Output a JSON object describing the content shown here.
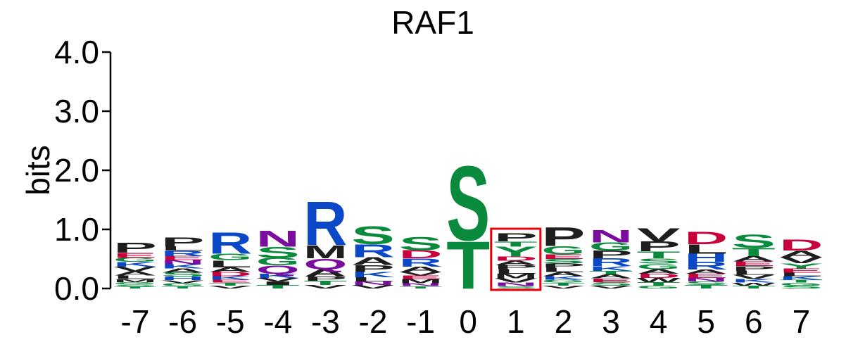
{
  "chart_data": {
    "type": "sequence-logo",
    "title": "RAF1",
    "ylabel": "bits",
    "ylim": [
      0,
      4
    ],
    "y_ticks": [
      "0.0",
      "1.0",
      "2.0",
      "3.0",
      "4.0"
    ],
    "y_tick_values": [
      0,
      1,
      2,
      3,
      4
    ],
    "positions": [
      "-7",
      "-6",
      "-5",
      "-4",
      "-3",
      "-2",
      "-1",
      "0",
      "1",
      "2",
      "3",
      "4",
      "5",
      "6",
      "7"
    ],
    "highlighted_position": "1",
    "highlight_color": "#e8000b",
    "colors": {
      "S": "#0a8a3c",
      "T": "#0a8a3c",
      "G": "#0a8a3c",
      "Y": "#0a8a3c",
      "C": "#0a8a3c",
      "N": "#7b0d9e",
      "Q": "#7b0d9e",
      "R": "#0a48c8",
      "K": "#0a48c8",
      "H": "#0a48c8",
      "D": "#c8003c",
      "E": "#c8003c",
      "P": "#1e1e1e",
      "A": "#1e1e1e",
      "V": "#1e1e1e",
      "L": "#1e1e1e",
      "I": "#1e1e1e",
      "M": "#1e1e1e",
      "F": "#1e1e1e",
      "W": "#1e1e1e"
    },
    "stacks": [
      {
        "position": "-7",
        "letters": [
          [
            "T",
            0.03
          ],
          [
            "S",
            0.04
          ],
          [
            "G",
            0.04
          ],
          [
            "M",
            0.05
          ],
          [
            "L",
            0.06
          ],
          [
            "A",
            0.07
          ],
          [
            "V",
            0.08
          ],
          [
            "K",
            0.08
          ],
          [
            "G",
            0.07
          ],
          [
            "E",
            0.09
          ],
          [
            "P",
            0.17
          ]
        ]
      },
      {
        "position": "-6",
        "letters": [
          [
            "T",
            0.04
          ],
          [
            "G",
            0.05
          ],
          [
            "V",
            0.05
          ],
          [
            "H",
            0.06
          ],
          [
            "S",
            0.07
          ],
          [
            "A",
            0.07
          ],
          [
            "K",
            0.07
          ],
          [
            "N",
            0.07
          ],
          [
            "E",
            0.07
          ],
          [
            "R",
            0.09
          ],
          [
            "L",
            0.07
          ],
          [
            "P",
            0.16
          ]
        ]
      },
      {
        "position": "-5",
        "letters": [
          [
            "V",
            0.05
          ],
          [
            "T",
            0.05
          ],
          [
            "E",
            0.05
          ],
          [
            "K",
            0.06
          ],
          [
            "D",
            0.07
          ],
          [
            "A",
            0.08
          ],
          [
            "L",
            0.12
          ],
          [
            "G",
            0.11
          ],
          [
            "R",
            0.37
          ]
        ]
      },
      {
        "position": "-4",
        "letters": [
          [
            "T",
            0.06
          ],
          [
            "I",
            0.06
          ],
          [
            "V",
            0.06
          ],
          [
            "K",
            0.07
          ],
          [
            "Q",
            0.14
          ],
          [
            "G",
            0.13
          ],
          [
            "S",
            0.19
          ],
          [
            "N",
            0.28
          ]
        ]
      },
      {
        "position": "-3",
        "letters": [
          [
            "V",
            0.06
          ],
          [
            "T",
            0.07
          ],
          [
            "P",
            0.07
          ],
          [
            "A",
            0.13
          ],
          [
            "Q",
            0.18
          ],
          [
            "M",
            0.22
          ],
          [
            "R",
            0.76
          ]
        ]
      },
      {
        "position": "-2",
        "letters": [
          [
            "V",
            0.06
          ],
          [
            "N",
            0.06
          ],
          [
            "L",
            0.07
          ],
          [
            "K",
            0.09
          ],
          [
            "P",
            0.12
          ],
          [
            "A",
            0.13
          ],
          [
            "R",
            0.22
          ],
          [
            "S",
            0.31
          ]
        ]
      },
      {
        "position": "-1",
        "letters": [
          [
            "T",
            0.04
          ],
          [
            "N",
            0.05
          ],
          [
            "M",
            0.07
          ],
          [
            "E",
            0.06
          ],
          [
            "V",
            0.06
          ],
          [
            "A",
            0.09
          ],
          [
            "R",
            0.14
          ],
          [
            "D",
            0.14
          ],
          [
            "S",
            0.23
          ]
        ]
      },
      {
        "position": "0",
        "letters": [
          [
            "T",
            0.82
          ],
          [
            "S",
            1.29
          ]
        ]
      },
      {
        "position": "1",
        "letters": [
          [
            "S",
            0.04
          ],
          [
            "N",
            0.06
          ],
          [
            "V",
            0.07
          ],
          [
            "M",
            0.08
          ],
          [
            "L",
            0.08
          ],
          [
            "P",
            0.07
          ],
          [
            "A",
            0.07
          ],
          [
            "D",
            0.07
          ],
          [
            "Y",
            0.17
          ],
          [
            "T",
            0.09
          ],
          [
            "P",
            0.14
          ]
        ]
      },
      {
        "position": "2",
        "letters": [
          [
            "V",
            0.05
          ],
          [
            "T",
            0.05
          ],
          [
            "G",
            0.05
          ],
          [
            "K",
            0.06
          ],
          [
            "A",
            0.07
          ],
          [
            "L",
            0.07
          ],
          [
            "P",
            0.07
          ],
          [
            "S",
            0.08
          ],
          [
            "E",
            0.08
          ],
          [
            "G",
            0.14
          ],
          [
            "P",
            0.32
          ]
        ]
      },
      {
        "position": "3",
        "letters": [
          [
            "V",
            0.05
          ],
          [
            "S",
            0.06
          ],
          [
            "E",
            0.06
          ],
          [
            "A",
            0.07
          ],
          [
            "T",
            0.06
          ],
          [
            "K",
            0.08
          ],
          [
            "R",
            0.13
          ],
          [
            "P",
            0.13
          ],
          [
            "G",
            0.14
          ],
          [
            "N",
            0.21
          ]
        ]
      },
      {
        "position": "4",
        "letters": [
          [
            "G",
            0.05
          ],
          [
            "T",
            0.06
          ],
          [
            "W",
            0.07
          ],
          [
            "D",
            0.07
          ],
          [
            "A",
            0.08
          ],
          [
            "G",
            0.09
          ],
          [
            "S",
            0.09
          ],
          [
            "T",
            0.12
          ],
          [
            "P",
            0.17
          ],
          [
            "V",
            0.23
          ]
        ]
      },
      {
        "position": "5",
        "letters": [
          [
            "T",
            0.06
          ],
          [
            "S",
            0.06
          ],
          [
            "N",
            0.06
          ],
          [
            "E",
            0.07
          ],
          [
            "A",
            0.07
          ],
          [
            "R",
            0.13
          ],
          [
            "H",
            0.14
          ],
          [
            "L",
            0.16
          ],
          [
            "D",
            0.21
          ]
        ]
      },
      {
        "position": "6",
        "letters": [
          [
            "T",
            0.05
          ],
          [
            "W",
            0.05
          ],
          [
            "K",
            0.06
          ],
          [
            "V",
            0.07
          ],
          [
            "L",
            0.07
          ],
          [
            "P",
            0.08
          ],
          [
            "E",
            0.08
          ],
          [
            "A",
            0.09
          ],
          [
            "T",
            0.14
          ],
          [
            "S",
            0.23
          ]
        ]
      },
      {
        "position": "7",
        "letters": [
          [
            "S",
            0.05
          ],
          [
            "G",
            0.05
          ],
          [
            "T",
            0.05
          ],
          [
            "K",
            0.06
          ],
          [
            "L",
            0.06
          ],
          [
            "E",
            0.07
          ],
          [
            "Y",
            0.09
          ],
          [
            "V",
            0.1
          ],
          [
            "A",
            0.11
          ],
          [
            "D",
            0.19
          ]
        ]
      }
    ]
  }
}
